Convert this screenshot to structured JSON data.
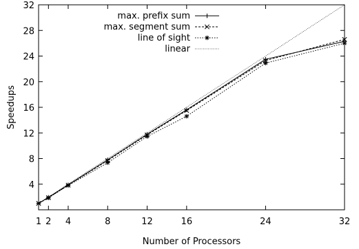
{
  "chart_data": {
    "type": "line",
    "xlabel": "Number of Processors",
    "ylabel": "Speedups",
    "xlim": [
      1,
      32
    ],
    "ylim": [
      0,
      32
    ],
    "xticks": [
      1,
      2,
      4,
      8,
      12,
      16,
      24,
      32
    ],
    "yticks": [
      4,
      8,
      12,
      16,
      20,
      24,
      28,
      32
    ],
    "grid": false,
    "legend_position": "top-left",
    "x": [
      1,
      2,
      4,
      8,
      12,
      16,
      24,
      32
    ],
    "series": [
      {
        "name": "max. prefix sum",
        "marker": "plus",
        "dash": "solid",
        "values": [
          1,
          1.95,
          3.9,
          7.8,
          11.8,
          15.6,
          23.5,
          26.3
        ]
      },
      {
        "name": "max. segment sum",
        "marker": "cross",
        "dash": "dashed",
        "values": [
          1,
          1.9,
          3.85,
          7.7,
          11.7,
          15.5,
          23.3,
          26.6
        ]
      },
      {
        "name": "line of sight",
        "marker": "star",
        "dash": "dotted",
        "values": [
          1,
          1.85,
          3.8,
          7.35,
          11.45,
          14.6,
          22.9,
          26.0
        ]
      },
      {
        "name": "linear",
        "marker": "none",
        "dash": "fine-dotted",
        "values": [
          1,
          2,
          4,
          8,
          12,
          16,
          24,
          32
        ]
      }
    ]
  }
}
